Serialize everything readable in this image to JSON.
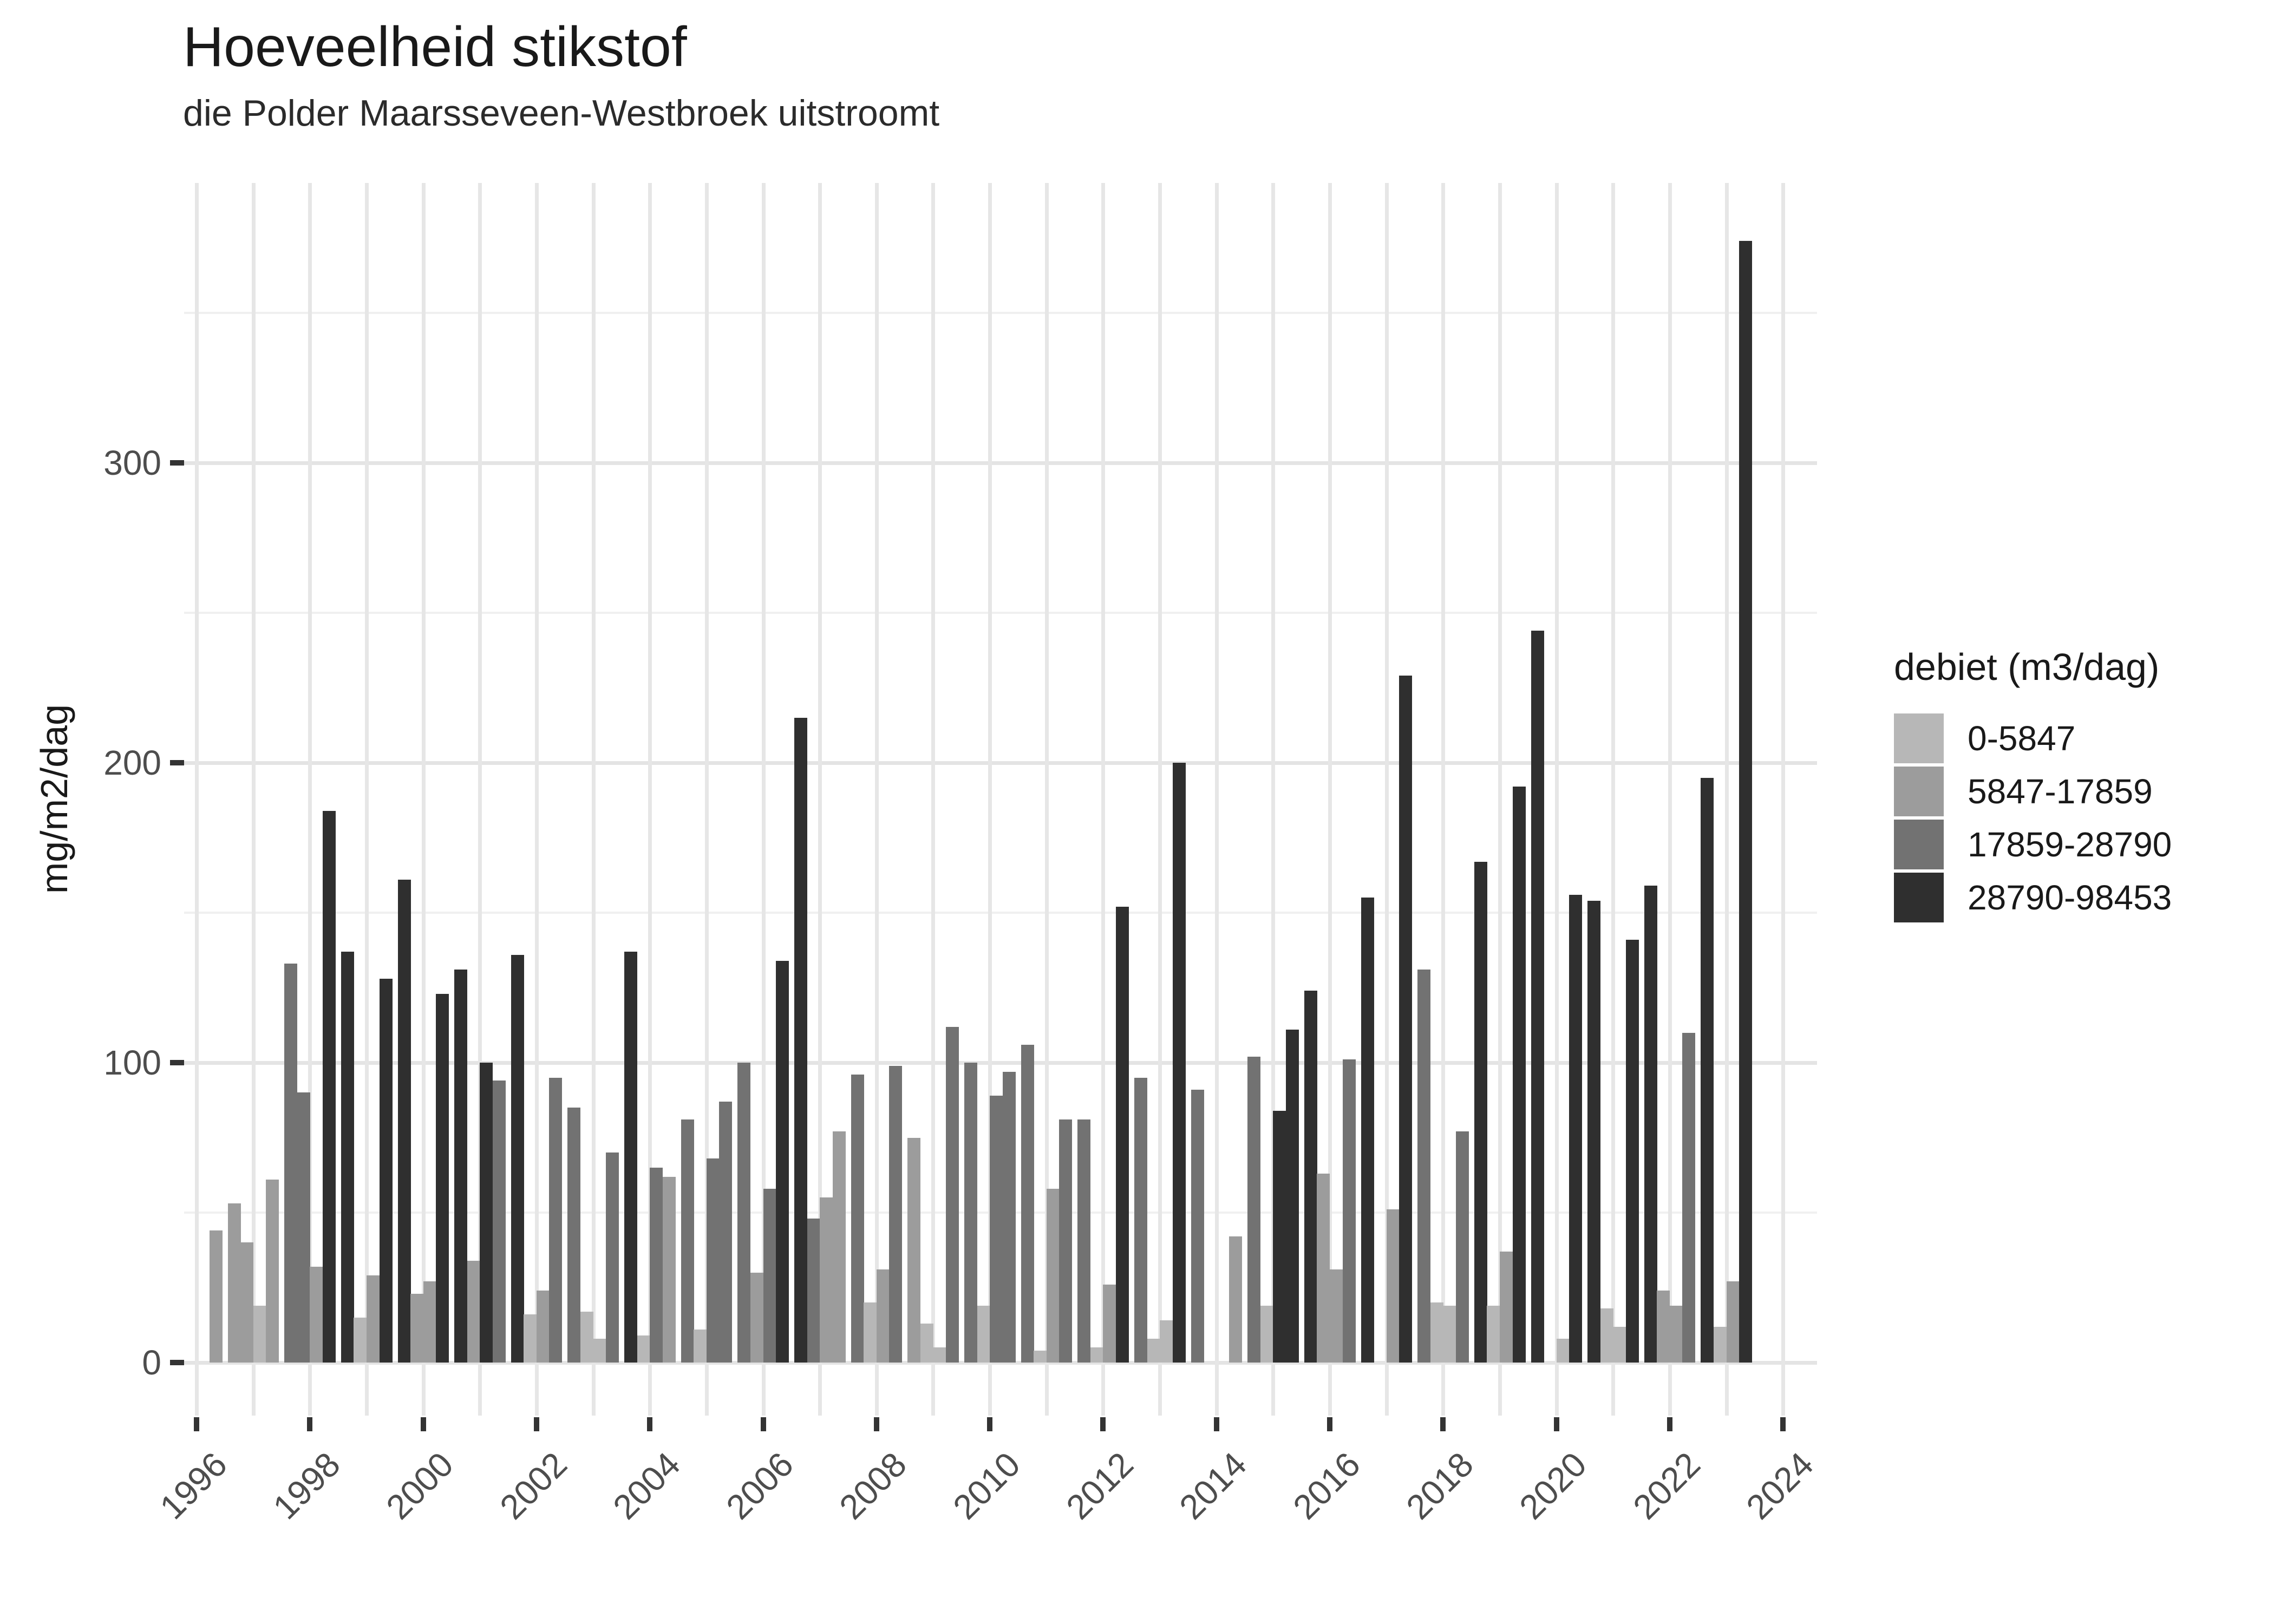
{
  "header": {
    "title": "Hoeveelheid stikstof",
    "subtitle": "die Polder Maarsseveen-Westbroek uitstroomt"
  },
  "y_axis": {
    "title": "mg/m2/dag",
    "tick_values": [
      0,
      100,
      200,
      300
    ],
    "minor_gridline_values": [
      50,
      150,
      250,
      350
    ],
    "range": [
      0,
      393
    ]
  },
  "x_axis": {
    "tick_years": [
      1996,
      1998,
      2000,
      2002,
      2004,
      2006,
      2008,
      2010,
      2012,
      2014,
      2016,
      2018,
      2020,
      2022,
      2024
    ],
    "min_year": 1996,
    "max_year": 2024
  },
  "legend": {
    "title": "debiet (m3/dag)",
    "items": [
      {
        "label": "0-5847",
        "color": "#b7b7b7"
      },
      {
        "label": "5847-17859",
        "color": "#9c9c9c"
      },
      {
        "label": "17859-28790",
        "color": "#727272"
      },
      {
        "label": "28790-98453",
        "color": "#2f2f2f"
      }
    ]
  },
  "chart_data": {
    "type": "bar",
    "title": "Hoeveelheid stikstof",
    "subtitle": "die Polder Maarsseveen-Westbroek uitstroomt",
    "xlabel": "",
    "ylabel": "mg/m2/dag",
    "ylim": [
      0,
      393
    ],
    "grid": "on",
    "legend_position": "right",
    "group_by": "year (4 dodged quarterly bars per year, shaded by debiet class)",
    "debiet_classes": [
      "0-5847",
      "5847-17859",
      "17859-28790",
      "28790-98453"
    ],
    "class_colors": [
      "#b7b7b7",
      "#9c9c9c",
      "#727272",
      "#2f2f2f"
    ],
    "bars": [
      {
        "y": 1996,
        "q": 4,
        "c": 2,
        "v": 44
      },
      {
        "y": 1997,
        "q": 1,
        "c": 2,
        "v": 53
      },
      {
        "y": 1997,
        "q": 2,
        "c": 2,
        "v": 40
      },
      {
        "y": 1997,
        "q": 3,
        "c": 1,
        "v": 19
      },
      {
        "y": 1997,
        "q": 4,
        "c": 2,
        "v": 61
      },
      {
        "y": 1998,
        "q": 1,
        "c": 3,
        "v": 133
      },
      {
        "y": 1998,
        "q": 2,
        "c": 3,
        "v": 90
      },
      {
        "y": 1998,
        "q": 3,
        "c": 2,
        "v": 32
      },
      {
        "y": 1998,
        "q": 4,
        "c": 4,
        "v": 184
      },
      {
        "y": 1999,
        "q": 1,
        "c": 4,
        "v": 137
      },
      {
        "y": 1999,
        "q": 2,
        "c": 1,
        "v": 15
      },
      {
        "y": 1999,
        "q": 3,
        "c": 2,
        "v": 29
      },
      {
        "y": 1999,
        "q": 4,
        "c": 4,
        "v": 128
      },
      {
        "y": 2000,
        "q": 1,
        "c": 4,
        "v": 161
      },
      {
        "y": 2000,
        "q": 2,
        "c": 2,
        "v": 23
      },
      {
        "y": 2000,
        "q": 3,
        "c": 2,
        "v": 27
      },
      {
        "y": 2000,
        "q": 4,
        "c": 4,
        "v": 123
      },
      {
        "y": 2001,
        "q": 1,
        "c": 4,
        "v": 131
      },
      {
        "y": 2001,
        "q": 2,
        "c": 2,
        "v": 34
      },
      {
        "y": 2001,
        "q": 3,
        "c": 4,
        "v": 100
      },
      {
        "y": 2001,
        "q": 4,
        "c": 3,
        "v": 94
      },
      {
        "y": 2002,
        "q": 1,
        "c": 4,
        "v": 136
      },
      {
        "y": 2002,
        "q": 2,
        "c": 1,
        "v": 16
      },
      {
        "y": 2002,
        "q": 3,
        "c": 2,
        "v": 24
      },
      {
        "y": 2002,
        "q": 4,
        "c": 3,
        "v": 95
      },
      {
        "y": 2003,
        "q": 1,
        "c": 3,
        "v": 85
      },
      {
        "y": 2003,
        "q": 2,
        "c": 1,
        "v": 17
      },
      {
        "y": 2003,
        "q": 3,
        "c": 1,
        "v": 8
      },
      {
        "y": 2003,
        "q": 4,
        "c": 3,
        "v": 70
      },
      {
        "y": 2004,
        "q": 1,
        "c": 4,
        "v": 137
      },
      {
        "y": 2004,
        "q": 2,
        "c": 1,
        "v": 9
      },
      {
        "y": 2004,
        "q": 3,
        "c": 3,
        "v": 65
      },
      {
        "y": 2004,
        "q": 4,
        "c": 2,
        "v": 62
      },
      {
        "y": 2005,
        "q": 1,
        "c": 3,
        "v": 81
      },
      {
        "y": 2005,
        "q": 2,
        "c": 1,
        "v": 11
      },
      {
        "y": 2005,
        "q": 3,
        "c": 3,
        "v": 68
      },
      {
        "y": 2005,
        "q": 4,
        "c": 3,
        "v": 87
      },
      {
        "y": 2006,
        "q": 1,
        "c": 3,
        "v": 100
      },
      {
        "y": 2006,
        "q": 2,
        "c": 2,
        "v": 30
      },
      {
        "y": 2006,
        "q": 3,
        "c": 3,
        "v": 58
      },
      {
        "y": 2006,
        "q": 4,
        "c": 4,
        "v": 134
      },
      {
        "y": 2007,
        "q": 1,
        "c": 4,
        "v": 215
      },
      {
        "y": 2007,
        "q": 2,
        "c": 3,
        "v": 48
      },
      {
        "y": 2007,
        "q": 3,
        "c": 2,
        "v": 55
      },
      {
        "y": 2007,
        "q": 4,
        "c": 2,
        "v": 77
      },
      {
        "y": 2008,
        "q": 1,
        "c": 3,
        "v": 96
      },
      {
        "y": 2008,
        "q": 2,
        "c": 1,
        "v": 20
      },
      {
        "y": 2008,
        "q": 3,
        "c": 2,
        "v": 31
      },
      {
        "y": 2008,
        "q": 4,
        "c": 3,
        "v": 99
      },
      {
        "y": 2009,
        "q": 1,
        "c": 2,
        "v": 75
      },
      {
        "y": 2009,
        "q": 2,
        "c": 1,
        "v": 13
      },
      {
        "y": 2009,
        "q": 3,
        "c": 1,
        "v": 5
      },
      {
        "y": 2009,
        "q": 4,
        "c": 3,
        "v": 112
      },
      {
        "y": 2010,
        "q": 1,
        "c": 3,
        "v": 100
      },
      {
        "y": 2010,
        "q": 2,
        "c": 1,
        "v": 19
      },
      {
        "y": 2010,
        "q": 3,
        "c": 3,
        "v": 89
      },
      {
        "y": 2010,
        "q": 4,
        "c": 3,
        "v": 97
      },
      {
        "y": 2011,
        "q": 1,
        "c": 3,
        "v": 106
      },
      {
        "y": 2011,
        "q": 2,
        "c": 1,
        "v": 4
      },
      {
        "y": 2011,
        "q": 3,
        "c": 2,
        "v": 58
      },
      {
        "y": 2011,
        "q": 4,
        "c": 3,
        "v": 81
      },
      {
        "y": 2012,
        "q": 1,
        "c": 3,
        "v": 81
      },
      {
        "y": 2012,
        "q": 2,
        "c": 1,
        "v": 5
      },
      {
        "y": 2012,
        "q": 3,
        "c": 2,
        "v": 26
      },
      {
        "y": 2012,
        "q": 4,
        "c": 4,
        "v": 152
      },
      {
        "y": 2013,
        "q": 1,
        "c": 3,
        "v": 95
      },
      {
        "y": 2013,
        "q": 2,
        "c": 1,
        "v": 8
      },
      {
        "y": 2013,
        "q": 3,
        "c": 1,
        "v": 14
      },
      {
        "y": 2013,
        "q": 4,
        "c": 4,
        "v": 200
      },
      {
        "y": 2014,
        "q": 1,
        "c": 3,
        "v": 91
      },
      {
        "y": 2014,
        "q": 4,
        "c": 2,
        "v": 42
      },
      {
        "y": 2015,
        "q": 1,
        "c": 3,
        "v": 102
      },
      {
        "y": 2015,
        "q": 2,
        "c": 1,
        "v": 19
      },
      {
        "y": 2015,
        "q": 3,
        "c": 4,
        "v": 84
      },
      {
        "y": 2015,
        "q": 4,
        "c": 4,
        "v": 111
      },
      {
        "y": 2016,
        "q": 1,
        "c": 4,
        "v": 124
      },
      {
        "y": 2016,
        "q": 2,
        "c": 2,
        "v": 63
      },
      {
        "y": 2016,
        "q": 3,
        "c": 2,
        "v": 31
      },
      {
        "y": 2016,
        "q": 4,
        "c": 3,
        "v": 101
      },
      {
        "y": 2017,
        "q": 1,
        "c": 4,
        "v": 155
      },
      {
        "y": 2017,
        "q": 3,
        "c": 2,
        "v": 51
      },
      {
        "y": 2017,
        "q": 4,
        "c": 4,
        "v": 229
      },
      {
        "y": 2018,
        "q": 1,
        "c": 3,
        "v": 131
      },
      {
        "y": 2018,
        "q": 2,
        "c": 1,
        "v": 20
      },
      {
        "y": 2018,
        "q": 3,
        "c": 1,
        "v": 19
      },
      {
        "y": 2018,
        "q": 4,
        "c": 3,
        "v": 77
      },
      {
        "y": 2019,
        "q": 1,
        "c": 4,
        "v": 167
      },
      {
        "y": 2019,
        "q": 2,
        "c": 1,
        "v": 19
      },
      {
        "y": 2019,
        "q": 3,
        "c": 2,
        "v": 37
      },
      {
        "y": 2019,
        "q": 4,
        "c": 4,
        "v": 192
      },
      {
        "y": 2020,
        "q": 1,
        "c": 4,
        "v": 244
      },
      {
        "y": 2020,
        "q": 3,
        "c": 1,
        "v": 8
      },
      {
        "y": 2020,
        "q": 4,
        "c": 4,
        "v": 156
      },
      {
        "y": 2021,
        "q": 1,
        "c": 4,
        "v": 154
      },
      {
        "y": 2021,
        "q": 2,
        "c": 1,
        "v": 18
      },
      {
        "y": 2021,
        "q": 3,
        "c": 1,
        "v": 12
      },
      {
        "y": 2021,
        "q": 4,
        "c": 4,
        "v": 141
      },
      {
        "y": 2022,
        "q": 1,
        "c": 4,
        "v": 159
      },
      {
        "y": 2022,
        "q": 2,
        "c": 2,
        "v": 24
      },
      {
        "y": 2022,
        "q": 3,
        "c": 2,
        "v": 19
      },
      {
        "y": 2022,
        "q": 4,
        "c": 3,
        "v": 110
      },
      {
        "y": 2023,
        "q": 1,
        "c": 4,
        "v": 195
      },
      {
        "y": 2023,
        "q": 2,
        "c": 1,
        "v": 12
      },
      {
        "y": 2023,
        "q": 3,
        "c": 2,
        "v": 27
      },
      {
        "y": 2023,
        "q": 4,
        "c": 4,
        "v": 374
      }
    ]
  }
}
